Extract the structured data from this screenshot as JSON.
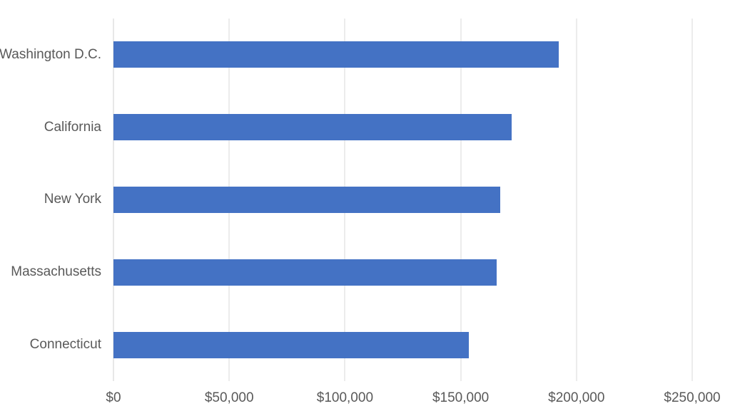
{
  "chart_data": {
    "type": "bar",
    "orientation": "horizontal",
    "title": "",
    "xlabel": "",
    "ylabel": "",
    "categories": [
      "Washington D.C.",
      "California",
      "New York",
      "Massachusetts",
      "Connecticut"
    ],
    "values": [
      192500,
      172000,
      167000,
      165500,
      153500
    ],
    "xlim": [
      0,
      250000
    ],
    "tick_labels": [
      "$0",
      "$50,000",
      "$100,000",
      "$150,000",
      "$200,000",
      "$250,000"
    ],
    "grid": "vertical-gridlines-on",
    "legend": "none",
    "colors": {
      "bar": "#4472c4",
      "gridline": "#d9d9d9",
      "axis_line": "#d0d0d0",
      "label_text": "#595959",
      "background": "#ffffff"
    }
  }
}
